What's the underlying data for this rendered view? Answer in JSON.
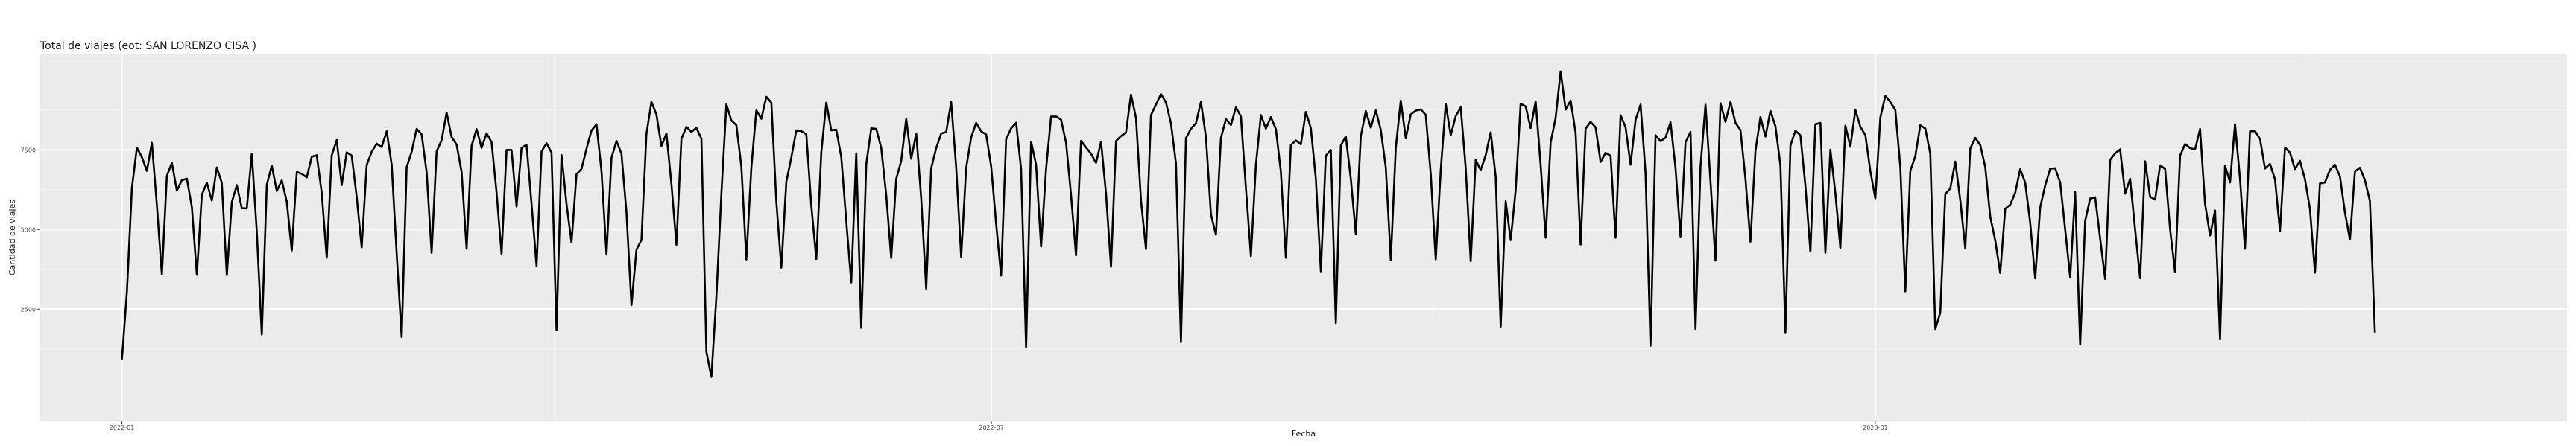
{
  "chart_data": {
    "type": "line",
    "title": "Total de viajes (eot: SAN LORENZO CISA )",
    "xlabel": "Fecha",
    "ylabel": "Cantidad de viajes",
    "x_ticks": [
      "2022-01",
      "2022-07",
      "2023-01"
    ],
    "y_ticks": [
      2500,
      5000,
      7500
    ],
    "ylim": [
      -1000,
      10500
    ],
    "x_start": "2022-01-01",
    "x_end": "2023-04-15",
    "xlim": [
      "2021-12-15",
      "2023-05-25"
    ],
    "grid": true,
    "legend": "none",
    "colors": {
      "panel": "#ebebeb",
      "grid_major": "#ffffff",
      "line": "#000000"
    },
    "series": [
      {
        "values": [
          921,
          3038,
          6302,
          7573,
          7273,
          6842,
          7722,
          5762,
          3584,
          6686,
          7095,
          6221,
          6549,
          6597,
          5712,
          3576,
          6095,
          6469,
          5911,
          6948,
          6465,
          3568,
          5860,
          6394,
          5671,
          5662,
          7383,
          4923,
          1702,
          6402,
          7011,
          6208,
          6545,
          5876,
          4341,
          6808,
          6747,
          6640,
          7285,
          7334,
          6148,
          4115,
          7327,
          7811,
          6394,
          7425,
          7322,
          6025,
          4439,
          7024,
          7442,
          7695,
          7591,
          8087,
          7045,
          4248,
          1622,
          6961,
          7439,
          8163,
          7987,
          6803,
          4267,
          7454,
          7805,
          8670,
          7902,
          7669,
          6809,
          4396,
          7631,
          8155,
          7564,
          8023,
          7742,
          6159,
          4230,
          7498,
          7497,
          5722,
          7563,
          7665,
          5808,
          3856,
          7448,
          7713,
          7415,
          1838,
          7341,
          5804,
          4593,
          6737,
          6904,
          7537,
          8110,
          8305,
          6834,
          4210,
          7251,
          7781,
          7383,
          5544,
          2630,
          4367,
          4672,
          8004,
          9009,
          8610,
          7621,
          8017,
          6430,
          4521,
          7849,
          8226,
          8067,
          8193,
          7851,
          1162,
          369,
          2892,
          6123,
          8932,
          8423,
          8277,
          6975,
          4059,
          6953,
          8742,
          8479,
          9168,
          8984,
          5875,
          3802,
          6498,
          7261,
          8115,
          8089,
          7994,
          5755,
          4074,
          7425,
          8982,
          8115,
          8138,
          7276,
          5269,
          3337,
          7397,
          1912,
          7051,
          8179,
          8162,
          7564,
          6084,
          4103,
          6589,
          7157,
          8475,
          7223,
          8018,
          5981,
          3139,
          6924,
          7555,
          8017,
          8060,
          9004,
          6956,
          4145,
          6935,
          7892,
          8351,
          8082,
          7984,
          6991,
          5186,
          3554,
          7835,
          8178,
          8353,
          6893,
          1302,
          7759,
          7035,
          4467,
          6904,
          8546,
          8551,
          8450,
          7728,
          6080,
          4187,
          7785,
          7574,
          7380,
          7094,
          7756,
          6122,
          3830,
          7780,
          7934,
          8050,
          9238,
          8504,
          5914,
          4386,
          8594,
          8927,
          9256,
          8988,
          8335,
          7082,
          1487,
          7870,
          8164,
          8338,
          9005,
          7906,
          5472,
          4834,
          7876,
          8468,
          8280,
          8836,
          8553,
          6306,
          4165,
          7035,
          8593,
          8171,
          8531,
          8155,
          6808,
          4112,
          7652,
          7798,
          7676,
          8692,
          8183,
          6593,
          3687,
          7319,
          7498,
          2061,
          7640,
          7922,
          6589,
          4863,
          7928,
          8724,
          8199,
          8740,
          8130,
          6952,
          4043,
          7561,
          9051,
          7867,
          8615,
          8736,
          8771,
          8600,
          6744,
          4058,
          6866,
          8944,
          7962,
          8561,
          8838,
          6929,
          4007,
          7184,
          6868,
          7337,
          8053,
          6659,
          1953,
          5889,
          4667,
          6237,
          8947,
          8867,
          8187,
          9024,
          7024,
          4746,
          7733,
          8508,
          9964,
          8766,
          9047,
          8039,
          4529,
          8168,
          8383,
          8210,
          7124,
          7405,
          7320,
          4742,
          8592,
          8212,
          7034,
          8442,
          8922,
          6780,
          1347,
          7963,
          7774,
          7883,
          8370,
          6933,
          4780,
          7740,
          8066,
          1877,
          6975,
          8920,
          6512,
          4023,
          8968,
          8382,
          9002,
          8350,
          8122,
          6593,
          4616,
          7460,
          8532,
          7919,
          8726,
          8246,
          7008,
          1771,
          7631,
          8103,
          7960,
          6369,
          4307,
          8307,
          8347,
          4268,
          7508,
          6137,
          4424,
          8260,
          7599,
          8752,
          8226,
          7967,
          6834,
          5979,
          8516,
          9197,
          9007,
          8752,
          6961,
          3059,
          6845,
          7304,
          8275,
          8173,
          7379,
          1875,
          2389,
          6111,
          6289,
          7133,
          5926,
          4417,
          7543,
          7880,
          7651,
          6967,
          5403,
          4661,
          3636,
          5653,
          5781,
          6154,
          6896,
          6470,
          5207,
          3465,
          5701,
          6384,
          6910,
          6925,
          6479,
          5002,
          3502,
          6172,
          1378,
          5267,
          5973,
          6013,
          4719,
          3449,
          7190,
          7393,
          7517,
          6125,
          6593,
          5001,
          3470,
          7141,
          6030,
          5941,
          7017,
          6904,
          5015,
          3659,
          7322,
          7683,
          7559,
          7515,
          8159,
          5814,
          4813,
          5596,
          1561,
          7013,
          6478,
          8311,
          6582,
          4395,
          8084,
          8092,
          7842,
          6916,
          7062,
          6578,
          4951,
          7582,
          7413,
          6899,
          7157,
          6579,
          5648,
          3644,
          6446,
          6478,
          6875,
          7032,
          6670,
          5536,
          4686,
          6821,
          6941,
          6547,
          5901,
          1765
        ]
      }
    ]
  }
}
